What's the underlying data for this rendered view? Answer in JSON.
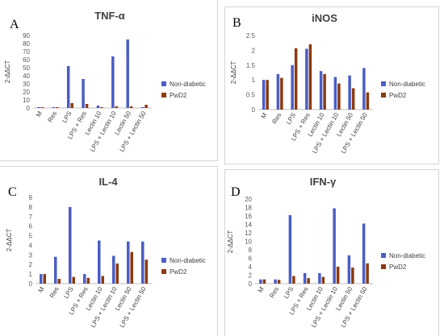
{
  "colors": {
    "non_diabetic": "#4b5dc4",
    "pwd2": "#8b3a10",
    "axis": "#bfbfbf",
    "text": "#595959"
  },
  "panels": [
    {
      "letter": "A",
      "title": "TNF-α",
      "ylabel": "2-ΔΔCT",
      "legend": [
        "Non-diabetic",
        "PwD2"
      ]
    },
    {
      "letter": "B",
      "title": "iNOS",
      "ylabel": "2-ΔΔCT",
      "legend": [
        "Non-diabetic",
        "PwD2"
      ]
    },
    {
      "letter": "C",
      "title": "IL-4",
      "ylabel": "2-ΔΔCT",
      "legend": [
        "Non-diabetic",
        "PwD2"
      ]
    },
    {
      "letter": "D",
      "title": "IFN-γ",
      "ylabel": "2-ΔΔCT",
      "legend": [
        "Non-diabetic",
        "PwD2"
      ]
    }
  ],
  "chart_data": [
    {
      "type": "bar",
      "title": "TNF-α",
      "ylabel": "2-ΔΔCT",
      "categories": [
        "M",
        "Res",
        "LPS",
        "LPS + Res",
        "Lectin 10",
        "LPS + Lectin 10",
        "Lectin 50",
        "LPS + Lectin 50"
      ],
      "ylim": [
        0,
        90
      ],
      "yticks": [
        0,
        10,
        20,
        30,
        40,
        50,
        60,
        70,
        80,
        90
      ],
      "series": [
        {
          "name": "Non-diabetic",
          "values": [
            1,
            1,
            52,
            36,
            3,
            64,
            85,
            1
          ]
        },
        {
          "name": "PwD2",
          "values": [
            1,
            1,
            6,
            5,
            1,
            2,
            2,
            4
          ]
        }
      ],
      "legend_position": "right",
      "grid": false
    },
    {
      "type": "bar",
      "title": "iNOS",
      "ylabel": "2-ΔΔCT",
      "categories": [
        "M",
        "Res",
        "LPS",
        "LPS + Res",
        "Lectin 10",
        "LPS + Lectin 10",
        "Lectin 50",
        "LPS + Lectin 50"
      ],
      "ylim": [
        0,
        2.5
      ],
      "yticks": [
        0,
        0.5,
        1,
        1.5,
        2,
        2.5
      ],
      "series": [
        {
          "name": "Non-diabetic",
          "values": [
            1,
            1.2,
            1.5,
            2.05,
            1.3,
            1.1,
            1.15,
            1.4
          ]
        },
        {
          "name": "PwD2",
          "values": [
            1,
            1.07,
            2.07,
            2.2,
            1.2,
            0.88,
            0.72,
            0.58
          ]
        }
      ],
      "legend_position": "right",
      "grid": false
    },
    {
      "type": "bar",
      "title": "IL-4",
      "ylabel": "2-ΔΔCT",
      "categories": [
        "M",
        "Res",
        "LPS",
        "LPS + Res",
        "Lectin 10",
        "LPS + Lectin 10",
        "Lectin 50",
        "LPS + Lectin 50"
      ],
      "ylim": [
        0,
        9
      ],
      "yticks": [
        0,
        1,
        2,
        3,
        4,
        5,
        6,
        7,
        8,
        9
      ],
      "series": [
        {
          "name": "Non-diabetic",
          "values": [
            1,
            2.8,
            8,
            1,
            4.5,
            2.9,
            4.4,
            4.4
          ]
        },
        {
          "name": "PwD2",
          "values": [
            1,
            0.5,
            0.7,
            0.6,
            0.8,
            2.1,
            3.3,
            2.5
          ]
        }
      ],
      "legend_position": "right",
      "grid": false
    },
    {
      "type": "bar",
      "title": "IFN-γ",
      "ylabel": "2-ΔΔCT",
      "categories": [
        "M",
        "Res",
        "LPS",
        "LPS + Res",
        "Lectin 10",
        "LPS + Lectin 10",
        "Lectin 50",
        "LPS + Lectin 50"
      ],
      "ylim": [
        0,
        20
      ],
      "yticks": [
        0,
        2,
        4,
        6,
        8,
        10,
        12,
        14,
        16,
        18,
        20
      ],
      "series": [
        {
          "name": "Non-diabetic",
          "values": [
            1,
            1,
            16.2,
            2.5,
            2.5,
            17.8,
            6.7,
            14.2
          ]
        },
        {
          "name": "PwD2",
          "values": [
            1,
            0.9,
            1.8,
            1.3,
            1.6,
            4,
            3.8,
            4.8
          ]
        }
      ],
      "legend_position": "right",
      "grid": false
    }
  ]
}
